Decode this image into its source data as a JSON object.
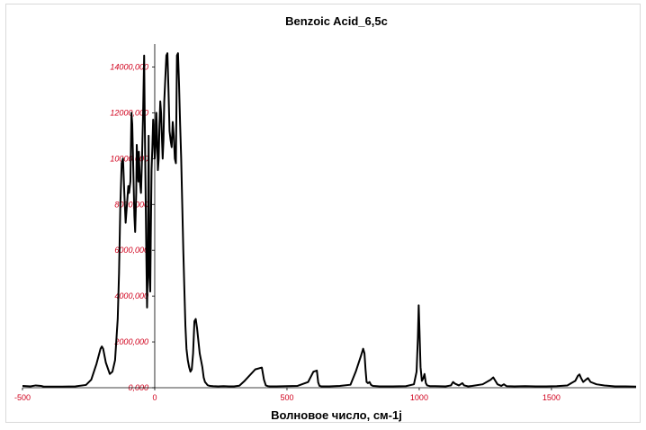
{
  "chart_data": {
    "type": "line",
    "title": "Benzoic Acid_6,5c",
    "xlabel": "Волновое число, см-1j",
    "ylabel": "",
    "xlim": [
      -500,
      1820
    ],
    "ylim": [
      0,
      15000000
    ],
    "x_ticks": [
      {
        "value": -500,
        "label": "-500"
      },
      {
        "value": 0,
        "label": "0"
      },
      {
        "value": 500,
        "label": "500"
      },
      {
        "value": 1000,
        "label": "1000"
      },
      {
        "value": 1500,
        "label": "1500"
      }
    ],
    "y_ticks": [
      {
        "value": 0,
        "label": "0,000"
      },
      {
        "value": 2000000,
        "label": "2000,000"
      },
      {
        "value": 4000000,
        "label": "4000,000"
      },
      {
        "value": 6000000,
        "label": "6000,000"
      },
      {
        "value": 8000000,
        "label": "8000,000"
      },
      {
        "value": 10000000,
        "label": "10000,000"
      },
      {
        "value": 12000000,
        "label": "12000,000"
      },
      {
        "value": 14000000,
        "label": "14000,000"
      }
    ],
    "grid": false,
    "legend": "none",
    "series": [
      {
        "color": "#000000",
        "x": [
          -500,
          -470,
          -450,
          -430,
          -420,
          -400,
          -350,
          -300,
          -260,
          -240,
          -220,
          -205,
          -200,
          -195,
          -185,
          -170,
          -160,
          -150,
          -140,
          -135,
          -130,
          -125,
          -120,
          -115,
          -110,
          -105,
          -100,
          -97,
          -92,
          -88,
          -85,
          -80,
          -77,
          -74,
          -70,
          -68,
          -65,
          -62,
          -60,
          -56,
          -52,
          -48,
          -44,
          -40,
          -38,
          -35,
          -32,
          -29,
          -26,
          -23,
          -20,
          -17,
          -15,
          -12,
          -9,
          -6,
          -3,
          0,
          3,
          6,
          9,
          12,
          15,
          18,
          21,
          24,
          27,
          30,
          33,
          36,
          40,
          44,
          48,
          52,
          56,
          60,
          64,
          68,
          72,
          76,
          80,
          84,
          88,
          92,
          96,
          100,
          104,
          108,
          112,
          116,
          120,
          125,
          130,
          135,
          140,
          145,
          150,
          155,
          160,
          170,
          180,
          185,
          190,
          195,
          200,
          205,
          210,
          220,
          240,
          260,
          280,
          300,
          320,
          340,
          380,
          405,
          413,
          420,
          427,
          435,
          460,
          500,
          540,
          580,
          600,
          613,
          618,
          623,
          630,
          660,
          700,
          740,
          760,
          780,
          788,
          793,
          797,
          801,
          806,
          812,
          818,
          825,
          850,
          900,
          950,
          980,
          990,
          995,
          998,
          1001,
          1005,
          1010,
          1015,
          1020,
          1025,
          1030,
          1040,
          1060,
          1100,
          1120,
          1128,
          1135,
          1150,
          1163,
          1170,
          1185,
          1200,
          1240,
          1270,
          1280,
          1288,
          1296,
          1310,
          1320,
          1330,
          1360,
          1400,
          1440,
          1480,
          1520,
          1560,
          1590,
          1600,
          1606,
          1612,
          1620,
          1630,
          1638,
          1648,
          1670,
          1700,
          1740,
          1780,
          1820
        ],
        "y": [
          80000,
          60000,
          100000,
          80000,
          50000,
          50000,
          50000,
          60000,
          120000,
          350000,
          1050000,
          1700000,
          1800000,
          1700000,
          1100000,
          600000,
          700000,
          1200000,
          3000000,
          5000000,
          8000000,
          9800000,
          10000000,
          8500000,
          7200000,
          8000000,
          8800000,
          8500000,
          9000000,
          12000000,
          11500000,
          9000000,
          7500000,
          6800000,
          8500000,
          10600000,
          9800000,
          9000000,
          10300000,
          9000000,
          8500000,
          10000000,
          12000000,
          14500000,
          12000000,
          9000000,
          6000000,
          3500000,
          5500000,
          11000000,
          4800000,
          4200000,
          6500000,
          9500000,
          10500000,
          11700000,
          11000000,
          10000000,
          10500000,
          12000000,
          11000000,
          9500000,
          10000000,
          11500000,
          12500000,
          12000000,
          11000000,
          10000000,
          10800000,
          12500000,
          13500000,
          14500000,
          14600000,
          13000000,
          11200000,
          10800000,
          10500000,
          11600000,
          11000000,
          10000000,
          9800000,
          14500000,
          14600000,
          13200000,
          11500000,
          10000000,
          8000000,
          6000000,
          4300000,
          2700000,
          1700000,
          1200000,
          900000,
          700000,
          800000,
          1500000,
          2900000,
          3000000,
          2600000,
          1500000,
          900000,
          450000,
          250000,
          180000,
          110000,
          90000,
          80000,
          70000,
          60000,
          70000,
          60000,
          60000,
          90000,
          300000,
          800000,
          880000,
          350000,
          100000,
          70000,
          60000,
          60000,
          70000,
          80000,
          250000,
          700000,
          750000,
          230000,
          80000,
          60000,
          60000,
          80000,
          130000,
          700000,
          1400000,
          1700000,
          1500000,
          800000,
          250000,
          200000,
          250000,
          120000,
          80000,
          60000,
          60000,
          70000,
          150000,
          700000,
          2200000,
          3600000,
          2500000,
          900000,
          300000,
          400000,
          600000,
          200000,
          100000,
          70000,
          70000,
          60000,
          100000,
          250000,
          180000,
          100000,
          200000,
          100000,
          60000,
          80000,
          150000,
          350000,
          450000,
          300000,
          150000,
          80000,
          150000,
          70000,
          60000,
          70000,
          60000,
          60000,
          70000,
          100000,
          300000,
          520000,
          580000,
          420000,
          250000,
          350000,
          420000,
          250000,
          150000,
          100000,
          60000,
          60000,
          50000
        ]
      }
    ]
  }
}
